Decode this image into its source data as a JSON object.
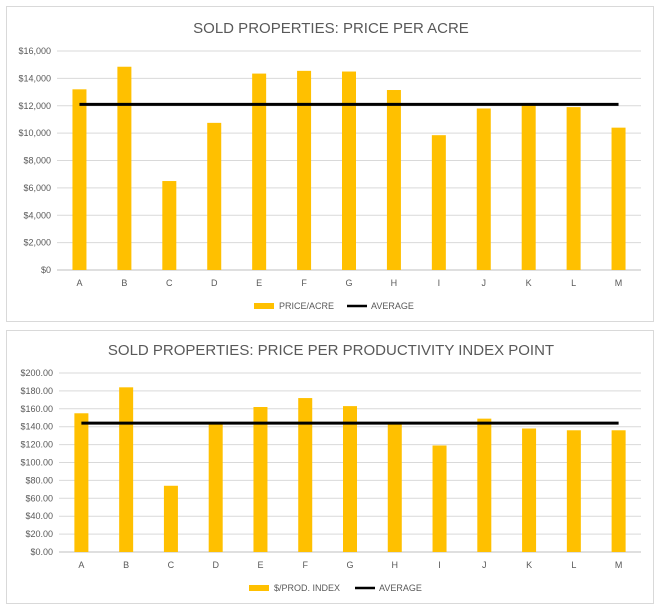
{
  "chart_data": [
    {
      "type": "bar",
      "title": "SOLD PROPERTIES: PRICE PER ACRE",
      "categories": [
        "A",
        "B",
        "C",
        "D",
        "E",
        "F",
        "G",
        "H",
        "I",
        "J",
        "K",
        "L",
        "M"
      ],
      "series": [
        {
          "name": "PRICE/ACRE",
          "kind": "bar",
          "color": "#FFC000",
          "values": [
            13200,
            14850,
            6500,
            10750,
            14350,
            14550,
            14500,
            13150,
            9850,
            11800,
            12050,
            11900,
            10400
          ]
        },
        {
          "name": "AVERAGE",
          "kind": "line",
          "color": "#000000",
          "values": [
            12100,
            12100,
            12100,
            12100,
            12100,
            12100,
            12100,
            12100,
            12100,
            12100,
            12100,
            12100,
            12100
          ]
        }
      ],
      "ylim": [
        0,
        16000
      ],
      "yticks": [
        "$0",
        "$2,000",
        "$4,000",
        "$6,000",
        "$8,000",
        "$10,000",
        "$12,000",
        "$14,000",
        "$16,000"
      ],
      "grid": true,
      "legend": "bottom"
    },
    {
      "type": "bar",
      "title": "SOLD PROPERTIES: PRICE PER PRODUCTIVITY INDEX  POINT",
      "categories": [
        "A",
        "B",
        "C",
        "D",
        "E",
        "F",
        "G",
        "H",
        "I",
        "J",
        "K",
        "L",
        "M"
      ],
      "series": [
        {
          "name": "$/PROD. INDEX",
          "kind": "bar",
          "color": "#FFC000",
          "values": [
            155,
            184,
            74,
            143,
            162,
            172,
            163,
            145,
            119,
            149,
            138,
            136,
            136
          ]
        },
        {
          "name": "AVERAGE",
          "kind": "line",
          "color": "#000000",
          "values": [
            144,
            144,
            144,
            144,
            144,
            144,
            144,
            144,
            144,
            144,
            144,
            144,
            144
          ]
        }
      ],
      "ylim": [
        0,
        200
      ],
      "yticks": [
        "$0.00",
        "$20.00",
        "$40.00",
        "$60.00",
        "$80.00",
        "$100.00",
        "$120.00",
        "$140.00",
        "$160.00",
        "$180.00",
        "$200.00"
      ],
      "grid": true,
      "legend": "bottom"
    }
  ]
}
